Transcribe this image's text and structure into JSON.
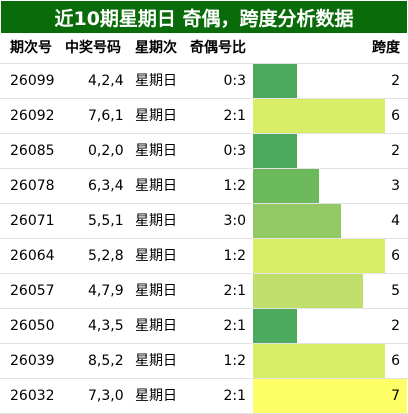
{
  "title": "近10期星期日 奇偶，跨度分析数据",
  "columns": {
    "issue": "期次号",
    "number": "中奖号码",
    "weekday": "星期次",
    "ratio": "奇偶号比",
    "span": "跨度"
  },
  "colors": {
    "title_bg": "#0a6b0a",
    "span_scale": [
      "#4caa5e",
      "#4caa5e",
      "#6cb95b",
      "#93c964",
      "#bfdf6a",
      "#d9ee68",
      "#fefe66"
    ]
  },
  "span_max": 7,
  "rows": [
    {
      "issue": "26099",
      "number": "4,2,4",
      "weekday": "星期日",
      "ratio": "0:3",
      "span": "2"
    },
    {
      "issue": "26092",
      "number": "7,6,1",
      "weekday": "星期日",
      "ratio": "2:1",
      "span": "6"
    },
    {
      "issue": "26085",
      "number": "0,2,0",
      "weekday": "星期日",
      "ratio": "0:3",
      "span": "2"
    },
    {
      "issue": "26078",
      "number": "6,3,4",
      "weekday": "星期日",
      "ratio": "1:2",
      "span": "3"
    },
    {
      "issue": "26071",
      "number": "5,5,1",
      "weekday": "星期日",
      "ratio": "3:0",
      "span": "4"
    },
    {
      "issue": "26064",
      "number": "5,2,8",
      "weekday": "星期日",
      "ratio": "1:2",
      "span": "6"
    },
    {
      "issue": "26057",
      "number": "4,7,9",
      "weekday": "星期日",
      "ratio": "2:1",
      "span": "5"
    },
    {
      "issue": "26050",
      "number": "4,3,5",
      "weekday": "星期日",
      "ratio": "2:1",
      "span": "2"
    },
    {
      "issue": "26039",
      "number": "8,5,2",
      "weekday": "星期日",
      "ratio": "1:2",
      "span": "6"
    },
    {
      "issue": "26032",
      "number": "7,3,0",
      "weekday": "星期日",
      "ratio": "2:1",
      "span": "7"
    }
  ]
}
